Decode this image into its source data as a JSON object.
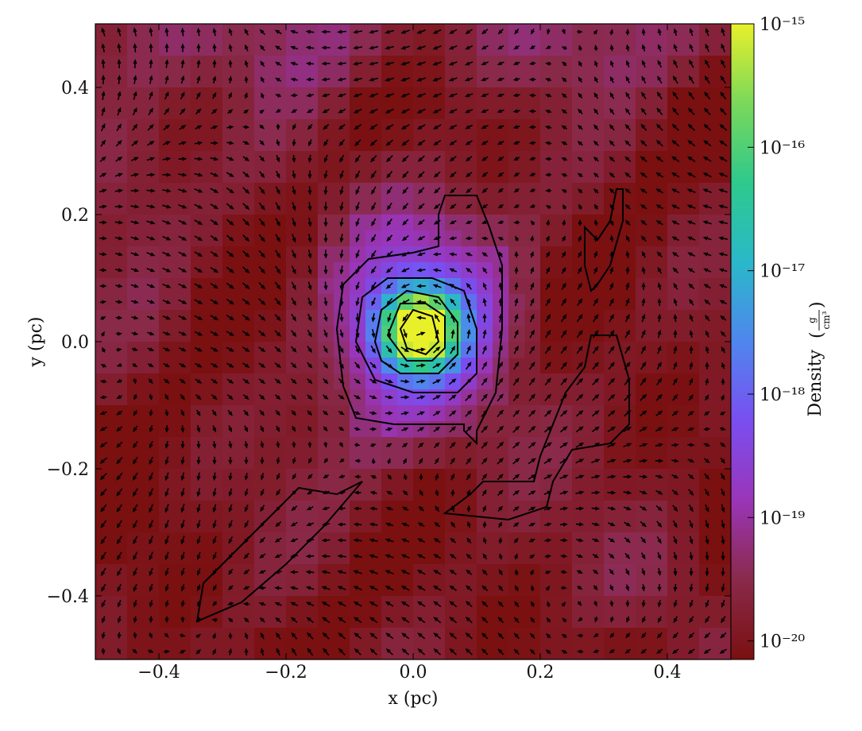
{
  "chart_data": {
    "type": "heatmap",
    "title": "",
    "xlabel": "x  (pc)",
    "ylabel": "y  (pc)",
    "xlim": [
      -0.5,
      0.5
    ],
    "ylim": [
      -0.5,
      0.5
    ],
    "x_ticks": [
      {
        "value": -0.4,
        "label": "−0.4"
      },
      {
        "value": -0.2,
        "label": "−0.2"
      },
      {
        "value": 0.0,
        "label": "0.0"
      },
      {
        "value": 0.2,
        "label": "0.2"
      },
      {
        "value": 0.4,
        "label": "0.4"
      }
    ],
    "y_ticks": [
      {
        "value": -0.4,
        "label": "−0.4"
      },
      {
        "value": -0.2,
        "label": "−0.2"
      },
      {
        "value": 0.0,
        "label": "0.0"
      },
      {
        "value": 0.2,
        "label": "0.2"
      },
      {
        "value": 0.4,
        "label": "0.4"
      }
    ],
    "colorbar": {
      "label": "Density",
      "unit_numerator": "g",
      "unit_denominator": "cm³",
      "scale": "log",
      "range_exponent": [
        -20.15,
        -15
      ],
      "ticks": [
        {
          "exponent": -15,
          "label": "10⁻¹⁵"
        },
        {
          "exponent": -16,
          "label": "10⁻¹⁶"
        },
        {
          "exponent": -17,
          "label": "10⁻¹⁷"
        },
        {
          "exponent": -18,
          "label": "10⁻¹⁸"
        },
        {
          "exponent": -19,
          "label": "10⁻¹⁹"
        },
        {
          "exponent": -20,
          "label": "10⁻²⁰"
        }
      ],
      "colormap": [
        "#7a1010",
        "#8a2a4a",
        "#9a35b8",
        "#7a4ef0",
        "#4f86ee",
        "#2ab8c9",
        "#2ec98c",
        "#7ad85a",
        "#e8f02a"
      ]
    },
    "peak": {
      "x": 0.01,
      "y": 0.02,
      "log_density": -15.3
    },
    "contours": [
      {
        "name": "outer",
        "points": [
          [
            -0.12,
            0.02
          ],
          [
            -0.11,
            0.09
          ],
          [
            -0.07,
            0.13
          ],
          [
            0.0,
            0.14
          ],
          [
            0.04,
            0.15
          ],
          [
            0.04,
            0.2
          ],
          [
            0.05,
            0.23
          ],
          [
            0.1,
            0.23
          ],
          [
            0.12,
            0.18
          ],
          [
            0.14,
            0.12
          ],
          [
            0.14,
            0.02
          ],
          [
            0.13,
            -0.08
          ],
          [
            0.1,
            -0.14
          ],
          [
            0.1,
            -0.16
          ],
          [
            0.08,
            -0.14
          ],
          [
            0.08,
            -0.13
          ],
          [
            -0.03,
            -0.13
          ],
          [
            -0.09,
            -0.12
          ],
          [
            -0.11,
            -0.07
          ],
          [
            -0.12,
            0.02
          ]
        ]
      },
      {
        "name": "level2",
        "points": [
          [
            -0.09,
            0.0
          ],
          [
            -0.08,
            0.07
          ],
          [
            -0.04,
            0.1
          ],
          [
            0.03,
            0.1
          ],
          [
            0.08,
            0.08
          ],
          [
            0.1,
            0.02
          ],
          [
            0.1,
            -0.05
          ],
          [
            0.07,
            -0.08
          ],
          [
            0.0,
            -0.08
          ],
          [
            -0.06,
            -0.06
          ],
          [
            -0.09,
            0.0
          ]
        ]
      },
      {
        "name": "level3",
        "points": [
          [
            -0.06,
            0.0
          ],
          [
            -0.05,
            0.05
          ],
          [
            -0.01,
            0.08
          ],
          [
            0.04,
            0.07
          ],
          [
            0.07,
            0.03
          ],
          [
            0.07,
            -0.02
          ],
          [
            0.04,
            -0.05
          ],
          [
            -0.02,
            -0.05
          ],
          [
            -0.05,
            -0.03
          ],
          [
            -0.06,
            0.0
          ]
        ]
      },
      {
        "name": "level4",
        "points": [
          [
            -0.04,
            0.01
          ],
          [
            -0.02,
            0.06
          ],
          [
            0.02,
            0.06
          ],
          [
            0.05,
            0.04
          ],
          [
            0.05,
            -0.01
          ],
          [
            0.03,
            -0.03
          ],
          [
            -0.01,
            -0.03
          ],
          [
            -0.04,
            0.01
          ]
        ]
      },
      {
        "name": "level5",
        "points": [
          [
            -0.02,
            0.02
          ],
          [
            0.0,
            0.05
          ],
          [
            0.03,
            0.04
          ],
          [
            0.04,
            0.0
          ],
          [
            0.02,
            -0.02
          ],
          [
            -0.01,
            -0.01
          ],
          [
            -0.02,
            0.02
          ]
        ]
      },
      {
        "name": "right-top",
        "points": [
          [
            0.27,
            0.18
          ],
          [
            0.29,
            0.16
          ],
          [
            0.31,
            0.19
          ],
          [
            0.32,
            0.24
          ],
          [
            0.33,
            0.24
          ],
          [
            0.33,
            0.19
          ],
          [
            0.31,
            0.12
          ],
          [
            0.29,
            0.09
          ],
          [
            0.28,
            0.08
          ],
          [
            0.27,
            0.12
          ],
          [
            0.27,
            0.18
          ]
        ]
      },
      {
        "name": "right-bottom",
        "points": [
          [
            0.28,
            0.01
          ],
          [
            0.32,
            0.01
          ],
          [
            0.34,
            -0.06
          ],
          [
            0.34,
            -0.13
          ],
          [
            0.31,
            -0.16
          ],
          [
            0.25,
            -0.17
          ],
          [
            0.22,
            -0.22
          ],
          [
            0.21,
            -0.26
          ],
          [
            0.15,
            -0.28
          ],
          [
            0.05,
            -0.27
          ],
          [
            0.09,
            -0.24
          ],
          [
            0.11,
            -0.22
          ],
          [
            0.19,
            -0.22
          ],
          [
            0.2,
            -0.18
          ],
          [
            0.22,
            -0.13
          ],
          [
            0.24,
            -0.08
          ],
          [
            0.27,
            -0.04
          ],
          [
            0.28,
            0.01
          ]
        ]
      },
      {
        "name": "lower-left",
        "points": [
          [
            -0.34,
            -0.44
          ],
          [
            -0.33,
            -0.38
          ],
          [
            -0.27,
            -0.32
          ],
          [
            -0.22,
            -0.27
          ],
          [
            -0.18,
            -0.23
          ],
          [
            -0.12,
            -0.24
          ],
          [
            -0.08,
            -0.22
          ],
          [
            -0.14,
            -0.29
          ],
          [
            -0.2,
            -0.35
          ],
          [
            -0.27,
            -0.41
          ],
          [
            -0.34,
            -0.44
          ]
        ]
      }
    ],
    "vector_field": {
      "name": "velocity",
      "grid": 40
    }
  }
}
